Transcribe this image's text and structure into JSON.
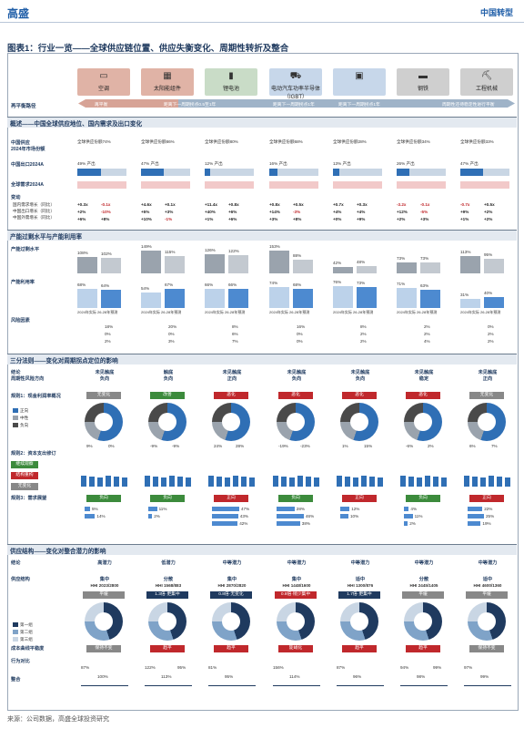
{
  "header": {
    "logo": "高盛",
    "right": "中国转型"
  },
  "figure_title": "图表1：行业一览——全球供应链位置、供应失衡变化、周期性转折及整合",
  "industries": [
    {
      "label": "空调",
      "icon": "ac-icon"
    },
    {
      "label": "太阳能组件",
      "icon": "solar-icon"
    },
    {
      "label": "锂电池",
      "icon": "battery-icon"
    },
    {
      "label": "电动汽车功率半导体（IGBT）",
      "icon": "ev-icon"
    },
    {
      "label": "",
      "icon": "chip-icon"
    },
    {
      "label": "钢铁",
      "icon": "steel-icon"
    },
    {
      "label": "工程机械",
      "icon": "excavator-icon"
    }
  ],
  "rebalance": {
    "title": "再平衡路径",
    "arrows": [
      "再平衡",
      "距离下一周期拐点0.5至1年",
      "距离下一周期拐点1年",
      "距离下一周期拐点1年",
      "周期性还待稳定性进行平衡"
    ]
  },
  "sections": {
    "s1": "概述——中国全球供应地位、国内需求及出口变化",
    "s2": "产能过剩水平与产能利用率",
    "s3": "三分法则——变化对周期拐点定位的影响",
    "s4": "供应结构——变化对整合潜力的影响"
  },
  "overview": {
    "row_labels": [
      "中国供应",
      "2024年市场份额",
      "中国出口2024A",
      "全球需求2024A",
      "变动"
    ],
    "sub_labels": [
      "国内需求增长（同比）",
      "中国出口增长（同比）",
      "中国外需增长（同比）"
    ],
    "shares": [
      "全球供应份额74%",
      "全球供应份额86%",
      "全球供应份额80%",
      "全球供应份额68%",
      "全球供应份额28%",
      "全球供应份额34%",
      "全球供应份额33%"
    ],
    "export_labels": [
      "49% 产出",
      "47% 产出",
      "12% 产出",
      "16% 产出",
      "13% 产出",
      "26% 产出",
      "47% 产出"
    ],
    "changes": [
      [
        "+0.3x",
        "-0.1x",
        "+2%",
        "-10%",
        "+6%",
        "+8%"
      ],
      [
        "+4.6x",
        "+0.1x",
        "+5%",
        "+3%",
        "+10%",
        "-1%"
      ],
      [
        "+11.4x",
        "+0.8x",
        "+40%",
        "+6%",
        "+1%",
        "+6%"
      ],
      [
        "+0.8x",
        "+0.5x",
        "+14%",
        "-3%",
        "+3%",
        "+8%"
      ],
      [
        "+0.7x",
        "+0.3x",
        "+4%",
        "+4%",
        "+0%",
        "+9%"
      ],
      [
        "-3.2x",
        "-0.1x",
        "+12%",
        "-5%",
        "+2%",
        "+3%"
      ],
      [
        "-0.7x",
        "+0.5x",
        "+9%",
        "+2%",
        "+1%",
        "+2%"
      ]
    ]
  },
  "capacity": {
    "labels": [
      "产能过剩水平",
      "产能利用率",
      "风险因素"
    ],
    "overcap": [
      [
        "108%",
        "102%"
      ],
      [
        "149%",
        "115%"
      ],
      [
        "126%",
        "122%"
      ],
      [
        "153%",
        "88%"
      ],
      [
        "42%",
        "48%"
      ],
      [
        "73%",
        "73%"
      ],
      [
        "113%",
        "95%"
      ]
    ],
    "util": [
      [
        "68%",
        "64%"
      ],
      [
        "54%",
        "67%"
      ],
      [
        "66%",
        "66%"
      ],
      [
        "74%",
        "68%"
      ],
      [
        "76%",
        "73%"
      ],
      [
        "71%",
        "63%"
      ],
      [
        "31%",
        "40%"
      ]
    ],
    "year_lbl": "2024年实际 26-28年预测",
    "risk": [
      [
        "18%",
        "0%",
        "2%"
      ],
      [
        "20%",
        "0%",
        "3%"
      ],
      [
        "8%",
        "6%",
        "7%"
      ],
      [
        "16%",
        "0%",
        "0%"
      ],
      [
        "8%",
        "2%",
        "2%"
      ],
      [
        "2%",
        "2%",
        "4%"
      ],
      [
        "0%",
        "2%",
        "2%"
      ]
    ]
  },
  "trichotomy": {
    "labels": [
      "结论",
      "周期性风险方向",
      "规则1：现金利润率概况",
      "规则2：资本支出修订",
      "规则3：需求展望"
    ],
    "verdicts": [
      [
        "未见触底",
        "负向"
      ],
      [
        "触底",
        "负向"
      ],
      [
        "未见触底",
        "正向"
      ],
      [
        "未见触底",
        "负向"
      ],
      [
        "未见触底",
        "负向"
      ],
      [
        "未见触底",
        "稳定"
      ],
      [
        "未见触底",
        "正向"
      ]
    ],
    "tags": [
      "无变化",
      "改善",
      "恶化",
      "恶化",
      "恶化",
      "恶化",
      "无变化"
    ],
    "legend": [
      "正向",
      "中性",
      "负向"
    ],
    "rule1_vals": [
      [
        "9%",
        "0%"
      ],
      [
        "-9%",
        "-9%"
      ],
      [
        "24%",
        "28%"
      ],
      [
        "-19%",
        "-23%"
      ],
      [
        "1%",
        "15%"
      ],
      [
        "-6%",
        "2%"
      ],
      [
        "6%",
        "7%"
      ]
    ],
    "rule2_legend": [
      "继续观察",
      "结构重构",
      "无变化"
    ],
    "rule3_tags": [
      "负向",
      "负向",
      "正向",
      "负向",
      "正向",
      "负向",
      "正向"
    ],
    "rule3_vals": [
      [
        "5%",
        "14%"
      ],
      [
        "11%",
        "2%"
      ],
      [
        "47%",
        "43%",
        "42%"
      ],
      [
        "28%",
        "46%",
        "38%"
      ],
      [
        "12%",
        "10%"
      ],
      [
        "4%",
        "11%",
        "2%"
      ],
      [
        "22%",
        "25%",
        "19%"
      ]
    ]
  },
  "supply": {
    "labels": [
      "结论",
      "供应结构",
      "成本曲线平稳度",
      "行为对比",
      "整合"
    ],
    "verdicts": [
      [
        "高潜力",
        "集中"
      ],
      [
        "低潜力",
        "分散"
      ],
      [
        "中等潜力",
        "集中"
      ],
      [
        "中等潜力",
        "集中"
      ],
      [
        "中等潜力",
        "适中"
      ],
      [
        "中等潜力",
        "分散"
      ],
      [
        "中等潜力",
        "适中"
      ]
    ],
    "hhi": [
      "HHI 2023/2800",
      "HHI 1568/883",
      "HHI 2870/2820",
      "HHI 1448/1600",
      "HHI 1300/876",
      "HHI 2445/1405",
      "HHI 4600/1360"
    ],
    "tags": [
      "平缓",
      "1.3倍·更集中",
      "0.8倍·无变化",
      "0.8倍·稍少集中",
      "1.7倍·更集中",
      "平缓",
      "平缓"
    ],
    "legend": [
      "第一组",
      "第二组",
      "第三组"
    ],
    "steep": [
      "保持不变",
      "趋平",
      "趋平",
      "陡峭化",
      "趋平",
      "趋平",
      "保持不变"
    ],
    "cost_vals": [
      [
        "87%",
        "100%"
      ],
      [
        "122%",
        "113%",
        "95%"
      ],
      [
        "81%",
        "95%"
      ],
      [
        "156%",
        "114%"
      ],
      [
        "87%",
        "96%"
      ],
      [
        "94%",
        "98%",
        "99%"
      ],
      [
        "97%",
        "99%"
      ]
    ]
  },
  "footer": "来源：公司数据，高盛全球投资研究",
  "colors": {
    "navy": "#1f3a5f",
    "blue": "#2f6fb5",
    "red": "#c0282c",
    "green": "#3c8b3c",
    "gray": "#4a4a4a"
  }
}
